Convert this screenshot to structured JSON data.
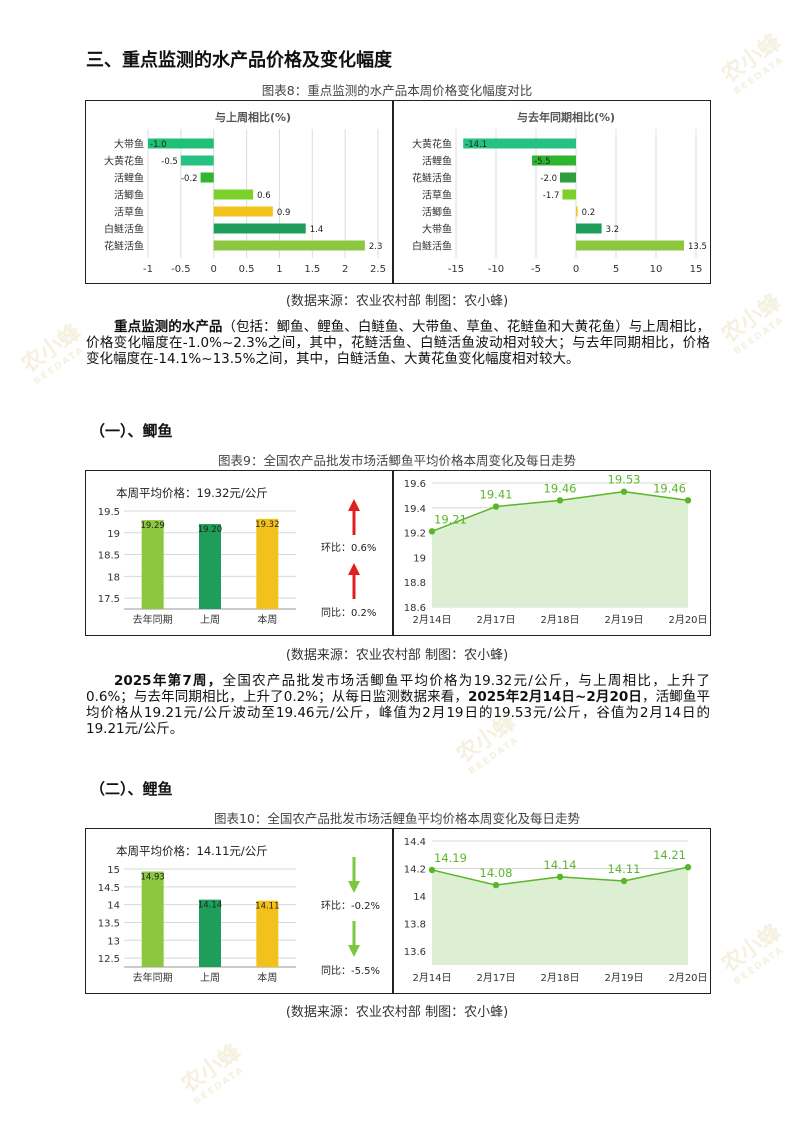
{
  "watermark": {
    "cn": "农小蜂",
    "en": "BEEDATA"
  },
  "section_title": "三、重点监测的水产品价格及变化幅度",
  "fig8": {
    "caption": "图表8：重点监测的水产品本周价格变化幅度对比",
    "source": "(数据来源：农业农村部    制图：农小蜂)",
    "chart_data": [
      {
        "type": "bar",
        "orientation": "horizontal",
        "title": "与上周相比(%)",
        "categories": [
          "大带鱼",
          "大黄花鱼",
          "活鲤鱼",
          "活鲫鱼",
          "活草鱼",
          "白鲢活鱼",
          "花鲢活鱼"
        ],
        "values": [
          -1.0,
          -0.5,
          -0.2,
          0.6,
          0.9,
          1.4,
          2.3
        ],
        "labels": [
          "-1.0",
          "-0.5",
          "-0.2",
          "0.6",
          "0.9",
          "1.4",
          "2.3"
        ],
        "colors": [
          "#1fbf75",
          "#26c281",
          "#2fb52f",
          "#7ad12a",
          "#f2c21a",
          "#1e9e5a",
          "#8dc63f"
        ],
        "xlim": [
          -1,
          2.5
        ],
        "xticks": [
          "-1",
          "-0.5",
          "0",
          "0.5",
          "1",
          "1.5",
          "2",
          "2.5"
        ],
        "grid": true
      },
      {
        "type": "bar",
        "orientation": "horizontal",
        "title": "与去年同期相比(%)",
        "categories": [
          "大黄花鱼",
          "活鲤鱼",
          "花鲢活鱼",
          "活草鱼",
          "活鲫鱼",
          "大带鱼",
          "白鲢活鱼"
        ],
        "values": [
          -14.1,
          -5.5,
          -2.0,
          -1.7,
          0.2,
          3.2,
          13.5
        ],
        "labels": [
          "-14.1",
          "-5.5",
          "-2.0",
          "-1.7",
          "0.2",
          "3.2",
          "13.5"
        ],
        "colors": [
          "#26c281",
          "#2fb52f",
          "#2e9e3e",
          "#7ad12a",
          "#f2c21a",
          "#1e9e5a",
          "#8dc63f"
        ],
        "xlim": [
          -15,
          15
        ],
        "xticks": [
          "-15",
          "-10",
          "-5",
          "0",
          "5",
          "10",
          "15"
        ],
        "grid": true
      }
    ]
  },
  "para1": {
    "bold": "重点监测的水产品",
    "text": "（包括：鲫鱼、鲤鱼、白鲢鱼、大带鱼、草鱼、花鲢鱼和大黄花鱼）与上周相比，价格变化幅度在-1.0%~2.3%之间，其中，花鲢活鱼、白鲢活鱼波动相对较大；与去年同期相比，价格变化幅度在-14.1%~13.5%之间，其中，白鲢活鱼、大黄花鱼变化幅度相对较大。"
  },
  "sub1": {
    "heading": "（一）、鲫鱼",
    "caption": "图表9：全国农产品批发市场活鲫鱼平均价格本周变化及每日走势",
    "source": "(数据来源：农业农村部    制图：农小蜂)",
    "avg_label": "本周平均价格：19.32元/公斤",
    "huanbi": "环比：0.6%",
    "tongbi": "同比：0.2%",
    "huanbi_dir": "up",
    "tongbi_dir": "up",
    "chart_data": [
      {
        "type": "bar",
        "categories": [
          "去年同期",
          "上周",
          "本周"
        ],
        "values": [
          19.29,
          19.2,
          19.32
        ],
        "labels": [
          "19.29",
          "19.20",
          "19.32"
        ],
        "colors": [
          "#8dc63f",
          "#1e9e5a",
          "#f2c21a"
        ],
        "ylim": [
          17.25,
          19.5
        ],
        "yticks": [
          "17.5",
          "18",
          "18.5",
          "19",
          "19.5"
        ],
        "ytick_values": [
          17.5,
          18,
          18.5,
          19,
          19.5
        ],
        "grid": true
      },
      {
        "type": "area",
        "x": [
          "2月14日",
          "2月17日",
          "2月18日",
          "2月19日",
          "2月20日"
        ],
        "values": [
          19.21,
          19.41,
          19.46,
          19.53,
          19.46
        ],
        "labels": [
          "19.21",
          "19.41",
          "19.46",
          "19.53",
          "19.46"
        ],
        "ylim": [
          18.6,
          19.6
        ],
        "yticks": [
          "18.6",
          "18.8",
          "19",
          "19.2",
          "19.4",
          "19.6"
        ],
        "ytick_values": [
          18.6,
          18.8,
          19,
          19.2,
          19.4,
          19.6
        ],
        "color": "#5ab52a",
        "fill": "#dcefd2",
        "grid": true
      }
    ]
  },
  "para2": {
    "b1": "2025年第7周，",
    "t1": "全国农产品批发市场活鲫鱼平均价格为19.32元/公斤，与上周相比，上升了0.6%；与去年同期相比，上升了0.2%；从每日监测数据来看，",
    "b2": "2025年2月14日~2月20日",
    "t2": "，活鲫鱼平均价格从19.21元/公斤波动至19.46元/公斤，峰值为2月19日的19.53元/公斤，谷值为2月14日的19.21元/公斤。"
  },
  "sub2": {
    "heading": "（二）、鲤鱼",
    "caption": "图表10：全国农产品批发市场活鲤鱼平均价格本周变化及每日走势",
    "source": "(数据来源：农业农村部    制图：农小蜂)",
    "avg_label": "本周平均价格：14.11元/公斤",
    "huanbi": "环比：-0.2%",
    "tongbi": "同比：-5.5%",
    "huanbi_dir": "down",
    "tongbi_dir": "down",
    "chart_data": [
      {
        "type": "bar",
        "categories": [
          "去年同期",
          "上周",
          "本周"
        ],
        "values": [
          14.93,
          14.14,
          14.11
        ],
        "labels": [
          "14.93",
          "14.14",
          "14.11"
        ],
        "colors": [
          "#8dc63f",
          "#1e9e5a",
          "#f2c21a"
        ],
        "ylim": [
          12.25,
          15
        ],
        "yticks": [
          "12.5",
          "13",
          "13.5",
          "14",
          "14.5",
          "15"
        ],
        "ytick_values": [
          12.5,
          13,
          13.5,
          14,
          14.5,
          15
        ],
        "grid": true
      },
      {
        "type": "area",
        "x": [
          "2月14日",
          "2月17日",
          "2月18日",
          "2月19日",
          "2月20日"
        ],
        "values": [
          14.19,
          14.08,
          14.14,
          14.11,
          14.21
        ],
        "labels": [
          "14.19",
          "14.08",
          "14.14",
          "14.11",
          "14.21"
        ],
        "ylim": [
          13.5,
          14.4
        ],
        "yticks": [
          "13.6",
          "13.8",
          "14",
          "14.2",
          "14.4"
        ],
        "ytick_values": [
          13.6,
          13.8,
          14,
          14.2,
          14.4
        ],
        "color": "#5ab52a",
        "fill": "#dcefd2",
        "grid": true
      }
    ]
  }
}
